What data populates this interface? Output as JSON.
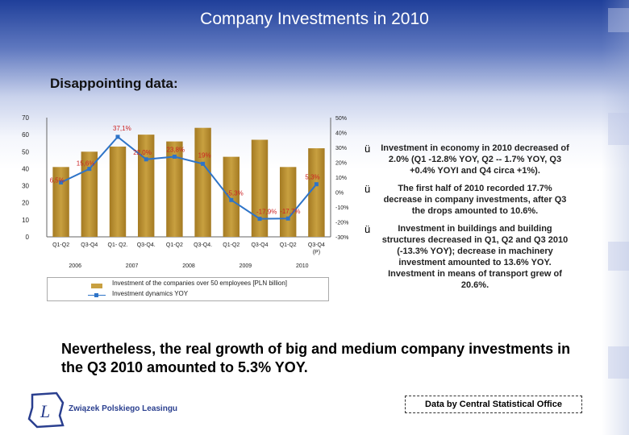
{
  "slide": {
    "title": "Company Investments in 2010",
    "subtitle": "Disappointing data:",
    "bullets": [
      "Investment in economy in 2010 decreased of 2.0% (Q1 -12.8% YOY, Q2 -- 1.7% YOY, Q3 +0.4% YOYI and Q4 circa +1%).",
      "The first half of 2010 recorded 17.7% decrease in company investments, after Q3 the drops amounted to 10.6%.",
      "Investment in buildings and building structures decreased in Q1, Q2 and Q3 2010 (-13.3% YOY); decrease in machinery investment amounted to 13.6% YOY. Investment in means of transport grew of 20.6%."
    ],
    "bullet_mark": "ü",
    "conclusion": "Nevertheless, the real growth of big and medium company investments in the Q3 2010 amounted to 5.3% YOY.",
    "source": "Data by Central Statistical Office",
    "logo_text": "Związek Polskiego Leasingu",
    "logo_letter": "L"
  },
  "chart_data": {
    "type": "bar",
    "categories": [
      "Q1-Q2",
      "Q3-Q4",
      "Q1- Q2.",
      "Q3-Q4.",
      "Q1-Q2",
      "Q3-Q4.",
      "Q1-Q2",
      "Q3-Q4",
      "Q1-Q2",
      "Q3-Q4 (P)"
    ],
    "years": [
      "2006",
      "2007",
      "2008",
      "2009",
      "2010"
    ],
    "series": [
      {
        "name": "Investment of the companies over 50 employees [PLN billion]",
        "type": "bar",
        "axis": "left",
        "values": [
          41,
          50,
          53,
          60,
          56,
          64,
          47,
          57,
          41,
          52
        ]
      },
      {
        "name": "Investment dynamics YOY",
        "type": "line",
        "axis": "right",
        "values": [
          6.5,
          15.6,
          37.1,
          22.0,
          23.8,
          19.0,
          -5.3,
          -17.9,
          -17.7,
          5.3
        ],
        "labels": [
          "6,5%",
          "15,6%",
          "37,1%",
          "22,0%",
          "23,8%",
          "19%",
          "-5,3%",
          "-17,9%",
          "-17,7%",
          "5,3%"
        ]
      }
    ],
    "yleft": {
      "ticks": [
        "0",
        "10",
        "20",
        "30",
        "40",
        "50",
        "60",
        "70"
      ],
      "lim": [
        0,
        70
      ]
    },
    "yright": {
      "ticks": [
        "-30%",
        "-20%",
        "-10%",
        "0%",
        "10%",
        "20%",
        "30%",
        "40%",
        "50%"
      ],
      "lim": [
        -30,
        50
      ]
    },
    "colors": {
      "bar": "#c8a040",
      "bar_dark": "#a47a22",
      "line": "#2e74c8"
    }
  }
}
